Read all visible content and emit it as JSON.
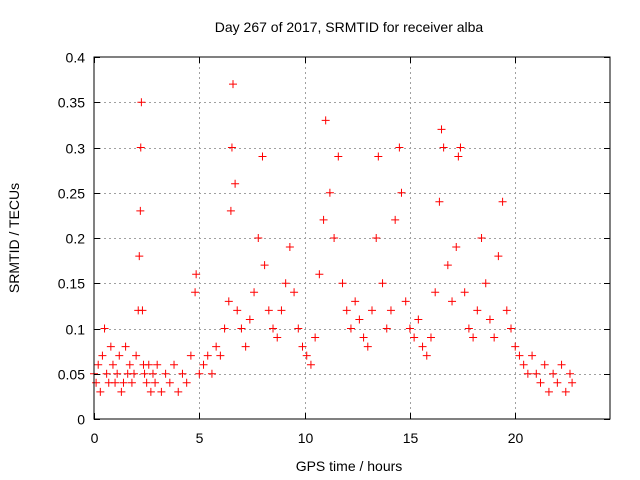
{
  "chart_data": {
    "type": "scatter",
    "title": "Day 267 of 2017, SRMTID for receiver alba",
    "xlabel": "GPS time / hours",
    "ylabel": "SRMTID / TECUs",
    "xlim": [
      0,
      24.5
    ],
    "ylim": [
      0,
      0.4
    ],
    "xticks": [
      0,
      5,
      10,
      15,
      20
    ],
    "xtick_labels": [
      "0",
      "5",
      "10",
      "15",
      "20"
    ],
    "yticks": [
      0,
      0.05,
      0.1,
      0.15,
      0.2,
      0.25,
      0.3,
      0.35,
      0.4
    ],
    "ytick_labels": [
      "0",
      "0.05",
      "0.1",
      "0.15",
      "0.2",
      "0.25",
      "0.3",
      "0.35",
      "0.4"
    ],
    "grid": true,
    "marker": "+",
    "series": [
      {
        "name": "SRMTID",
        "color": "#ff0000",
        "points": [
          [
            0.0,
            0.05
          ],
          [
            0.1,
            0.04
          ],
          [
            0.2,
            0.06
          ],
          [
            0.3,
            0.03
          ],
          [
            0.4,
            0.07
          ],
          [
            0.5,
            0.1
          ],
          [
            0.6,
            0.05
          ],
          [
            0.7,
            0.04
          ],
          [
            0.8,
            0.08
          ],
          [
            0.9,
            0.06
          ],
          [
            1.0,
            0.04
          ],
          [
            1.1,
            0.05
          ],
          [
            1.2,
            0.07
          ],
          [
            1.3,
            0.03
          ],
          [
            1.4,
            0.04
          ],
          [
            1.5,
            0.08
          ],
          [
            1.6,
            0.05
          ],
          [
            1.7,
            0.06
          ],
          [
            1.8,
            0.04
          ],
          [
            1.9,
            0.05
          ],
          [
            2.0,
            0.07
          ],
          [
            2.1,
            0.12
          ],
          [
            2.15,
            0.18
          ],
          [
            2.2,
            0.23
          ],
          [
            2.22,
            0.3
          ],
          [
            2.25,
            0.35
          ],
          [
            2.3,
            0.12
          ],
          [
            2.35,
            0.06
          ],
          [
            2.4,
            0.05
          ],
          [
            2.5,
            0.04
          ],
          [
            2.6,
            0.06
          ],
          [
            2.7,
            0.03
          ],
          [
            2.8,
            0.05
          ],
          [
            2.9,
            0.04
          ],
          [
            3.0,
            0.06
          ],
          [
            3.2,
            0.03
          ],
          [
            3.4,
            0.05
          ],
          [
            3.6,
            0.04
          ],
          [
            3.8,
            0.06
          ],
          [
            4.0,
            0.03
          ],
          [
            4.2,
            0.05
          ],
          [
            4.4,
            0.04
          ],
          [
            4.6,
            0.07
          ],
          [
            4.8,
            0.14
          ],
          [
            4.85,
            0.16
          ],
          [
            5.0,
            0.05
          ],
          [
            5.2,
            0.06
          ],
          [
            5.4,
            0.07
          ],
          [
            5.6,
            0.05
          ],
          [
            5.8,
            0.08
          ],
          [
            6.0,
            0.07
          ],
          [
            6.2,
            0.1
          ],
          [
            6.4,
            0.13
          ],
          [
            6.5,
            0.23
          ],
          [
            6.55,
            0.3
          ],
          [
            6.6,
            0.37
          ],
          [
            6.7,
            0.26
          ],
          [
            6.8,
            0.12
          ],
          [
            7.0,
            0.1
          ],
          [
            7.2,
            0.08
          ],
          [
            7.4,
            0.11
          ],
          [
            7.6,
            0.14
          ],
          [
            7.8,
            0.2
          ],
          [
            8.0,
            0.29
          ],
          [
            8.1,
            0.17
          ],
          [
            8.3,
            0.12
          ],
          [
            8.5,
            0.1
          ],
          [
            8.7,
            0.09
          ],
          [
            8.9,
            0.12
          ],
          [
            9.1,
            0.15
          ],
          [
            9.3,
            0.19
          ],
          [
            9.5,
            0.14
          ],
          [
            9.7,
            0.1
          ],
          [
            9.9,
            0.08
          ],
          [
            10.1,
            0.07
          ],
          [
            10.3,
            0.06
          ],
          [
            10.5,
            0.09
          ],
          [
            10.7,
            0.16
          ],
          [
            10.9,
            0.22
          ],
          [
            11.0,
            0.33
          ],
          [
            11.2,
            0.25
          ],
          [
            11.4,
            0.2
          ],
          [
            11.6,
            0.29
          ],
          [
            11.8,
            0.15
          ],
          [
            12.0,
            0.12
          ],
          [
            12.2,
            0.1
          ],
          [
            12.4,
            0.13
          ],
          [
            12.6,
            0.11
          ],
          [
            12.8,
            0.09
          ],
          [
            13.0,
            0.08
          ],
          [
            13.2,
            0.12
          ],
          [
            13.4,
            0.2
          ],
          [
            13.5,
            0.29
          ],
          [
            13.7,
            0.15
          ],
          [
            13.9,
            0.1
          ],
          [
            14.1,
            0.12
          ],
          [
            14.3,
            0.22
          ],
          [
            14.5,
            0.3
          ],
          [
            14.6,
            0.25
          ],
          [
            14.8,
            0.13
          ],
          [
            15.0,
            0.1
          ],
          [
            15.2,
            0.09
          ],
          [
            15.4,
            0.11
          ],
          [
            15.6,
            0.08
          ],
          [
            15.8,
            0.07
          ],
          [
            16.0,
            0.09
          ],
          [
            16.2,
            0.14
          ],
          [
            16.4,
            0.24
          ],
          [
            16.5,
            0.32
          ],
          [
            16.6,
            0.3
          ],
          [
            16.8,
            0.17
          ],
          [
            17.0,
            0.13
          ],
          [
            17.2,
            0.19
          ],
          [
            17.3,
            0.29
          ],
          [
            17.4,
            0.3
          ],
          [
            17.6,
            0.14
          ],
          [
            17.8,
            0.1
          ],
          [
            18.0,
            0.09
          ],
          [
            18.2,
            0.12
          ],
          [
            18.4,
            0.2
          ],
          [
            18.6,
            0.15
          ],
          [
            18.8,
            0.11
          ],
          [
            19.0,
            0.09
          ],
          [
            19.2,
            0.18
          ],
          [
            19.4,
            0.24
          ],
          [
            19.6,
            0.12
          ],
          [
            19.8,
            0.1
          ],
          [
            20.0,
            0.08
          ],
          [
            20.2,
            0.07
          ],
          [
            20.4,
            0.06
          ],
          [
            20.6,
            0.05
          ],
          [
            20.8,
            0.07
          ],
          [
            21.0,
            0.05
          ],
          [
            21.2,
            0.04
          ],
          [
            21.4,
            0.06
          ],
          [
            21.6,
            0.03
          ],
          [
            21.8,
            0.05
          ],
          [
            22.0,
            0.04
          ],
          [
            22.2,
            0.06
          ],
          [
            22.4,
            0.03
          ],
          [
            22.6,
            0.05
          ],
          [
            22.7,
            0.04
          ]
        ]
      }
    ]
  }
}
